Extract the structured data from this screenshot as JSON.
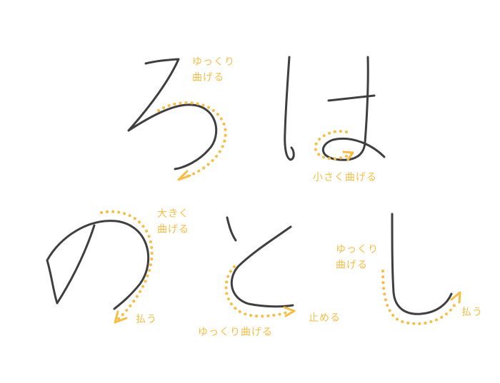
{
  "colors": {
    "stroke": "#3f3f3f",
    "guide": "#f7bd45",
    "background": "#ffffff"
  },
  "annotations": {
    "ro_curve": "ゆっくり\n曲げる",
    "ha_loop": "小さく曲げる",
    "no_curve": "大きく\n曲げる",
    "no_harai": "払う",
    "to_curve": "ゆっくり曲げる",
    "to_tome": "止める",
    "shi_curve": "ゆっくり\n曲げる",
    "shi_harai": "払う"
  }
}
